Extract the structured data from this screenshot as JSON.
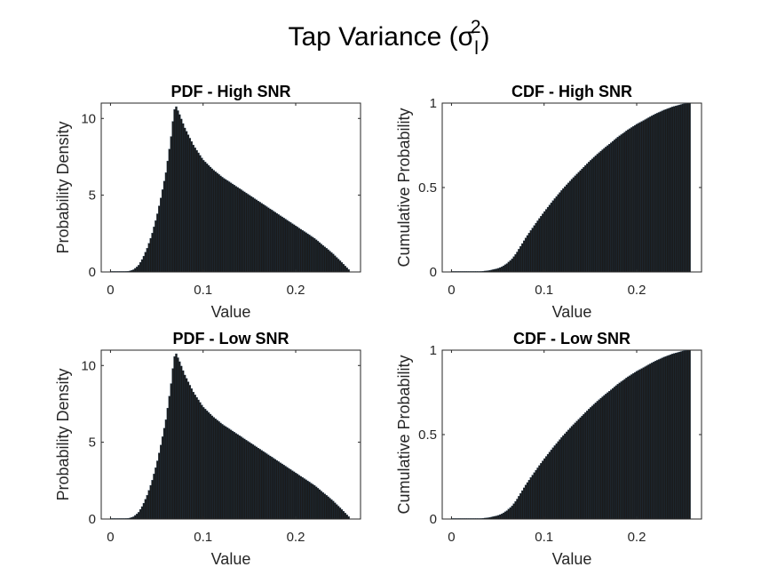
{
  "figure": {
    "title_main": "Tap Variance (σ",
    "title_sup": "2",
    "title_sub": "l",
    "title_close": ")"
  },
  "chart_data": [
    {
      "type": "bar",
      "title": "PDF - High SNR",
      "xlabel": "Value",
      "ylabel": "Probability Density",
      "xlim": [
        -0.01,
        0.27
      ],
      "ylim": [
        0,
        11
      ],
      "xticks": [
        0,
        0.1,
        0.2
      ],
      "xtick_labels": [
        "0",
        "0.1",
        "0.2"
      ],
      "yticks": [
        0,
        5,
        10
      ],
      "ytick_labels": [
        "0",
        "5",
        "10"
      ],
      "bar_color": "#1a1a1a",
      "edge_color": "#1f3a52",
      "curve": {
        "x": [
          0,
          0.01,
          0.02,
          0.025,
          0.03,
          0.035,
          0.04,
          0.045,
          0.05,
          0.055,
          0.06,
          0.065,
          0.068,
          0.07,
          0.075,
          0.08,
          0.09,
          0.1,
          0.11,
          0.12,
          0.13,
          0.14,
          0.15,
          0.16,
          0.17,
          0.18,
          0.19,
          0.2,
          0.21,
          0.22,
          0.23,
          0.24,
          0.25,
          0.258
        ],
        "y": [
          0,
          0,
          0.05,
          0.15,
          0.4,
          0.9,
          1.6,
          2.5,
          3.6,
          5.0,
          6.5,
          8.6,
          10.2,
          10.9,
          10.2,
          9.4,
          8.2,
          7.3,
          6.7,
          6.2,
          5.8,
          5.4,
          5.0,
          4.6,
          4.2,
          3.8,
          3.4,
          3.0,
          2.6,
          2.2,
          1.7,
          1.2,
          0.6,
          0.1
        ]
      }
    },
    {
      "type": "bar",
      "title": "CDF - High SNR",
      "xlabel": "Value",
      "ylabel": "Cumulative Probability",
      "xlim": [
        -0.01,
        0.27
      ],
      "ylim": [
        0,
        1
      ],
      "xticks": [
        0,
        0.1,
        0.2
      ],
      "xtick_labels": [
        "0",
        "0.1",
        "0.2"
      ],
      "yticks": [
        0,
        0.5,
        1
      ],
      "ytick_labels": [
        "0",
        "0.5",
        "1"
      ],
      "bar_color": "#1a1a1a",
      "edge_color": "#1f3a52",
      "curve": {
        "x": [
          0,
          0.02,
          0.03,
          0.04,
          0.05,
          0.055,
          0.06,
          0.065,
          0.07,
          0.075,
          0.08,
          0.09,
          0.1,
          0.11,
          0.12,
          0.13,
          0.14,
          0.15,
          0.16,
          0.17,
          0.18,
          0.19,
          0.2,
          0.21,
          0.22,
          0.23,
          0.24,
          0.25,
          0.258
        ],
        "y": [
          0,
          0.0005,
          0.002,
          0.008,
          0.02,
          0.032,
          0.05,
          0.075,
          0.11,
          0.155,
          0.2,
          0.28,
          0.355,
          0.425,
          0.49,
          0.55,
          0.605,
          0.66,
          0.71,
          0.755,
          0.8,
          0.84,
          0.875,
          0.905,
          0.935,
          0.96,
          0.98,
          0.995,
          1.0
        ]
      }
    },
    {
      "type": "bar",
      "title": "PDF - Low SNR",
      "xlabel": "Value",
      "ylabel": "Probability Density",
      "xlim": [
        -0.01,
        0.27
      ],
      "ylim": [
        0,
        11
      ],
      "xticks": [
        0,
        0.1,
        0.2
      ],
      "xtick_labels": [
        "0",
        "0.1",
        "0.2"
      ],
      "yticks": [
        0,
        5,
        10
      ],
      "ytick_labels": [
        "0",
        "5",
        "10"
      ],
      "bar_color": "#1a1a1a",
      "edge_color": "#1f3a52",
      "curve": {
        "x": [
          0,
          0.01,
          0.02,
          0.025,
          0.03,
          0.035,
          0.04,
          0.045,
          0.05,
          0.055,
          0.06,
          0.065,
          0.068,
          0.07,
          0.075,
          0.08,
          0.09,
          0.1,
          0.11,
          0.12,
          0.13,
          0.14,
          0.15,
          0.16,
          0.17,
          0.18,
          0.19,
          0.2,
          0.21,
          0.22,
          0.23,
          0.24,
          0.25,
          0.258
        ],
        "y": [
          0,
          0,
          0.05,
          0.15,
          0.4,
          0.9,
          1.6,
          2.5,
          3.6,
          5.0,
          6.5,
          8.6,
          10.2,
          10.9,
          10.2,
          9.4,
          8.2,
          7.3,
          6.7,
          6.2,
          5.8,
          5.4,
          5.0,
          4.6,
          4.2,
          3.8,
          3.4,
          3.0,
          2.6,
          2.2,
          1.7,
          1.2,
          0.6,
          0.1
        ]
      }
    },
    {
      "type": "bar",
      "title": "CDF - Low SNR",
      "xlabel": "Value",
      "ylabel": "Cumulative Probability",
      "xlim": [
        -0.01,
        0.27
      ],
      "ylim": [
        0,
        1
      ],
      "xticks": [
        0,
        0.1,
        0.2
      ],
      "xtick_labels": [
        "0",
        "0.1",
        "0.2"
      ],
      "yticks": [
        0,
        0.5,
        1
      ],
      "ytick_labels": [
        "0",
        "0.5",
        "1"
      ],
      "bar_color": "#1a1a1a",
      "edge_color": "#1f3a52",
      "curve": {
        "x": [
          0,
          0.02,
          0.03,
          0.04,
          0.05,
          0.055,
          0.06,
          0.065,
          0.07,
          0.075,
          0.08,
          0.09,
          0.1,
          0.11,
          0.12,
          0.13,
          0.14,
          0.15,
          0.16,
          0.17,
          0.18,
          0.19,
          0.2,
          0.21,
          0.22,
          0.23,
          0.24,
          0.25,
          0.258
        ],
        "y": [
          0,
          0.0005,
          0.002,
          0.008,
          0.02,
          0.032,
          0.05,
          0.075,
          0.11,
          0.155,
          0.2,
          0.28,
          0.355,
          0.425,
          0.49,
          0.55,
          0.605,
          0.66,
          0.71,
          0.755,
          0.8,
          0.84,
          0.875,
          0.905,
          0.935,
          0.96,
          0.98,
          0.995,
          1.0
        ]
      }
    }
  ]
}
